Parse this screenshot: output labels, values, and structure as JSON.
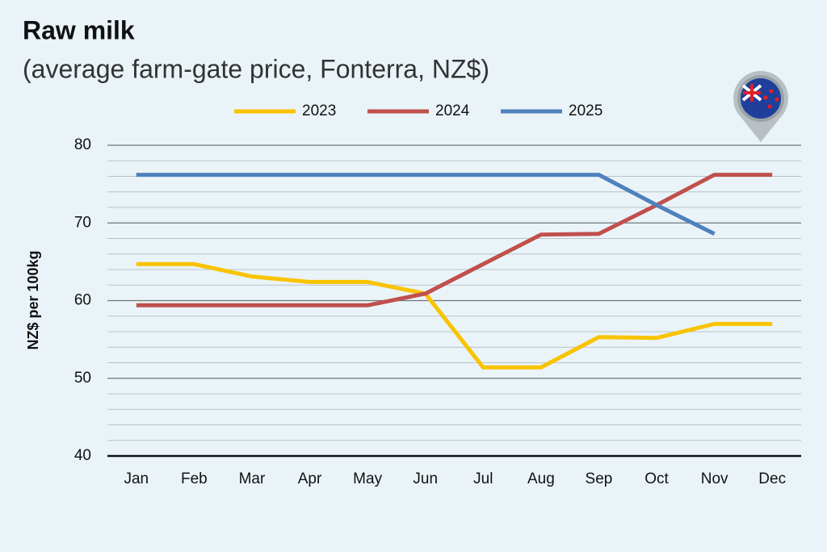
{
  "chart_data": {
    "type": "line",
    "title": "Raw milk",
    "subtitle": "(average farm-gate price, Fonterra, NZ$)",
    "y_label": "NZ$ per 100kg",
    "categories": [
      "Jan",
      "Feb",
      "Mar",
      "Apr",
      "May",
      "Jun",
      "Jul",
      "Aug",
      "Sep",
      "Oct",
      "Nov",
      "Dec"
    ],
    "series": [
      {
        "name": "2023",
        "color": "#f9c300",
        "values": [
          64.7,
          64.7,
          63.1,
          62.4,
          62.4,
          60.9,
          51.4,
          51.4,
          55.3,
          55.2,
          57.0,
          57.0
        ]
      },
      {
        "name": "2024",
        "color": "#c0504d",
        "values": [
          59.4,
          59.4,
          59.4,
          59.4,
          59.4,
          60.9,
          64.7,
          68.5,
          68.6,
          72.3,
          76.2,
          76.2
        ]
      },
      {
        "name": "2025",
        "color": "#4f81bd",
        "values": [
          76.2,
          76.2,
          76.2,
          76.2,
          76.2,
          76.2,
          76.2,
          76.2,
          76.2,
          72.3,
          68.6,
          null
        ]
      }
    ],
    "ylim": [
      40,
      80
    ],
    "yticks": [
      40,
      50,
      60,
      70,
      80
    ],
    "minor_yticks": [
      42,
      44,
      46,
      48,
      52,
      54,
      56,
      58,
      62,
      64,
      66,
      68,
      72,
      74,
      76,
      78
    ],
    "grid": true,
    "legend": "top"
  }
}
